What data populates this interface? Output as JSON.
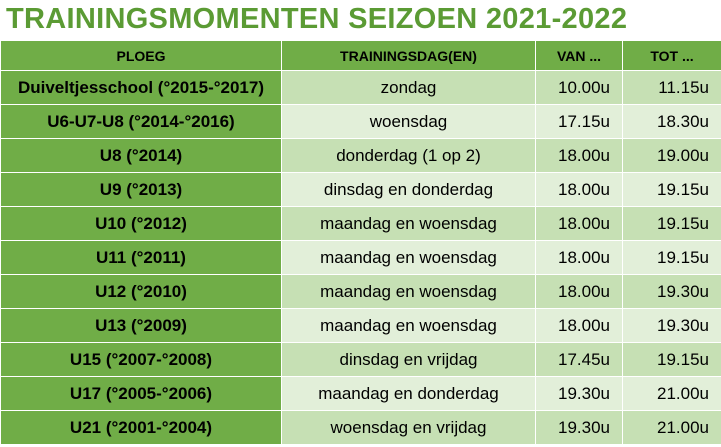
{
  "title": "TRAININGSMOMENTEN SEIZOEN 2021-2022",
  "table": {
    "header": [
      "PLOEG",
      "TRAININGSDAG(EN)",
      "VAN ...",
      "TOT ..."
    ],
    "rows": [
      [
        "Duiveltjesschool (°2015-°2017)",
        "zondag",
        "10.00u",
        "11.15u"
      ],
      [
        "U6-U7-U8 (°2014-°2016)",
        "woensdag",
        "17.15u",
        "18.30u"
      ],
      [
        "U8 (°2014)",
        "donderdag (1 op 2)",
        "18.00u",
        "19.00u"
      ],
      [
        "U9 (°2013)",
        "dinsdag en donderdag",
        "18.00u",
        "19.15u"
      ],
      [
        "U10 (°2012)",
        "maandag en woensdag",
        "18.00u",
        "19.15u"
      ],
      [
        "U11 (°2011)",
        "maandag en woensdag",
        "18.00u",
        "19.15u"
      ],
      [
        "U12 (°2010)",
        "maandag en woensdag",
        "18.00u",
        "19.30u"
      ],
      [
        "U13 (°2009)",
        "maandag en woensdag",
        "18.00u",
        "19.30u"
      ],
      [
        "U15 (°2007-°2008)",
        "dinsdag en vrijdag",
        "17.45u",
        "19.15u"
      ],
      [
        "U17 (°2005-°2006)",
        "maandag en donderdag",
        "19.30u",
        "21.00u"
      ],
      [
        "U21 (°2001-°2004)",
        "woensdag en vrijdag",
        "19.30u",
        "21.00u"
      ]
    ]
  }
}
